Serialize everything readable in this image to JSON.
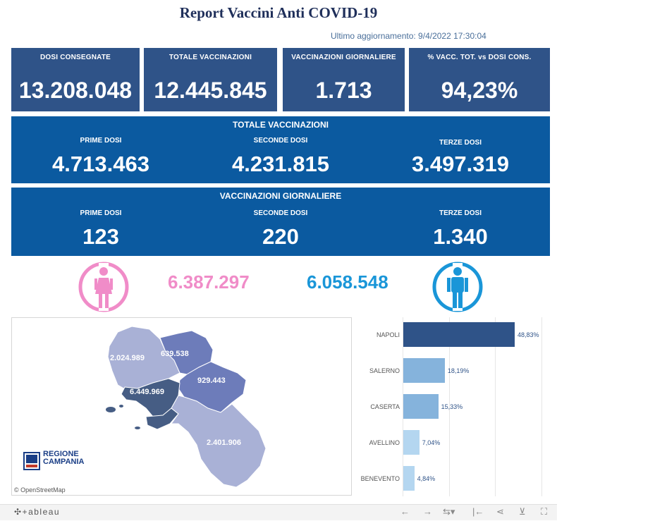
{
  "title": "Report Vaccini Anti COVID-19",
  "updated": "Ultimo aggiornamento: 9/4/2022  17:30:04",
  "kpis": [
    {
      "label": "DOSI  CONSEGNATE",
      "value": "13.208.048"
    },
    {
      "label": "TOTALE VACCINAZIONI",
      "value": "12.445.845"
    },
    {
      "label": "VACCINAZIONI GIORNALIERE",
      "value": "1.713"
    },
    {
      "label": "% VACC. TOT. vs DOSI CONS.",
      "value": "94,23%"
    }
  ],
  "totale": {
    "header": "TOTALE VACCINAZIONI",
    "cols": [
      {
        "label": "PRIME DOSI",
        "value": "4.713.463"
      },
      {
        "label": "SECONDE DOSI",
        "value": "4.231.815"
      },
      {
        "label": "TERZE DOSI",
        "value": "3.497.319"
      }
    ]
  },
  "giornaliere": {
    "header": "VACCINAZIONI GIORNALIERE",
    "cols": [
      {
        "label": "PRIME DOSI",
        "value": "123"
      },
      {
        "label": "SECONDE DOSI",
        "value": "220"
      },
      {
        "label": "TERZE DOSI",
        "value": "1.340"
      }
    ]
  },
  "gender": {
    "female_value": "6.387.297",
    "male_value": "6.058.548",
    "female_color": "#f08cc8",
    "male_color": "#1a96d8",
    "female_icon": "female-person-icon",
    "male_icon": "male-person-icon"
  },
  "map": {
    "labels": {
      "caserta": "2.024.989",
      "benevento": "639.538",
      "avellino": "929.443",
      "napoli": "6.449.969",
      "salerno": "2.401.906"
    },
    "logo_line1": "REGIONE",
    "logo_line2": "CAMPANIA",
    "attribution": "© OpenStreetMap"
  },
  "chart_data": {
    "type": "bar",
    "orientation": "horizontal",
    "categories": [
      "NAPOLI",
      "SALERNO",
      "CASERTA",
      "AVELLINO",
      "BENEVENTO"
    ],
    "values": [
      48.83,
      18.19,
      15.33,
      7.04,
      4.84
    ],
    "value_labels": [
      "48,83%",
      "18,19%",
      "15,33%",
      "7,04%",
      "4,84%"
    ],
    "colors": [
      "#2f5388",
      "#85b3dc",
      "#85b3dc",
      "#b4d6f0",
      "#b4d6f0"
    ],
    "xlim": [
      0,
      60
    ]
  },
  "toolbar": {
    "brand": "✣+ableau",
    "icons": [
      "undo-icon",
      "redo-icon",
      "revert-icon",
      "pause-icon",
      "share-icon",
      "download-icon",
      "fullscreen-icon"
    ]
  }
}
